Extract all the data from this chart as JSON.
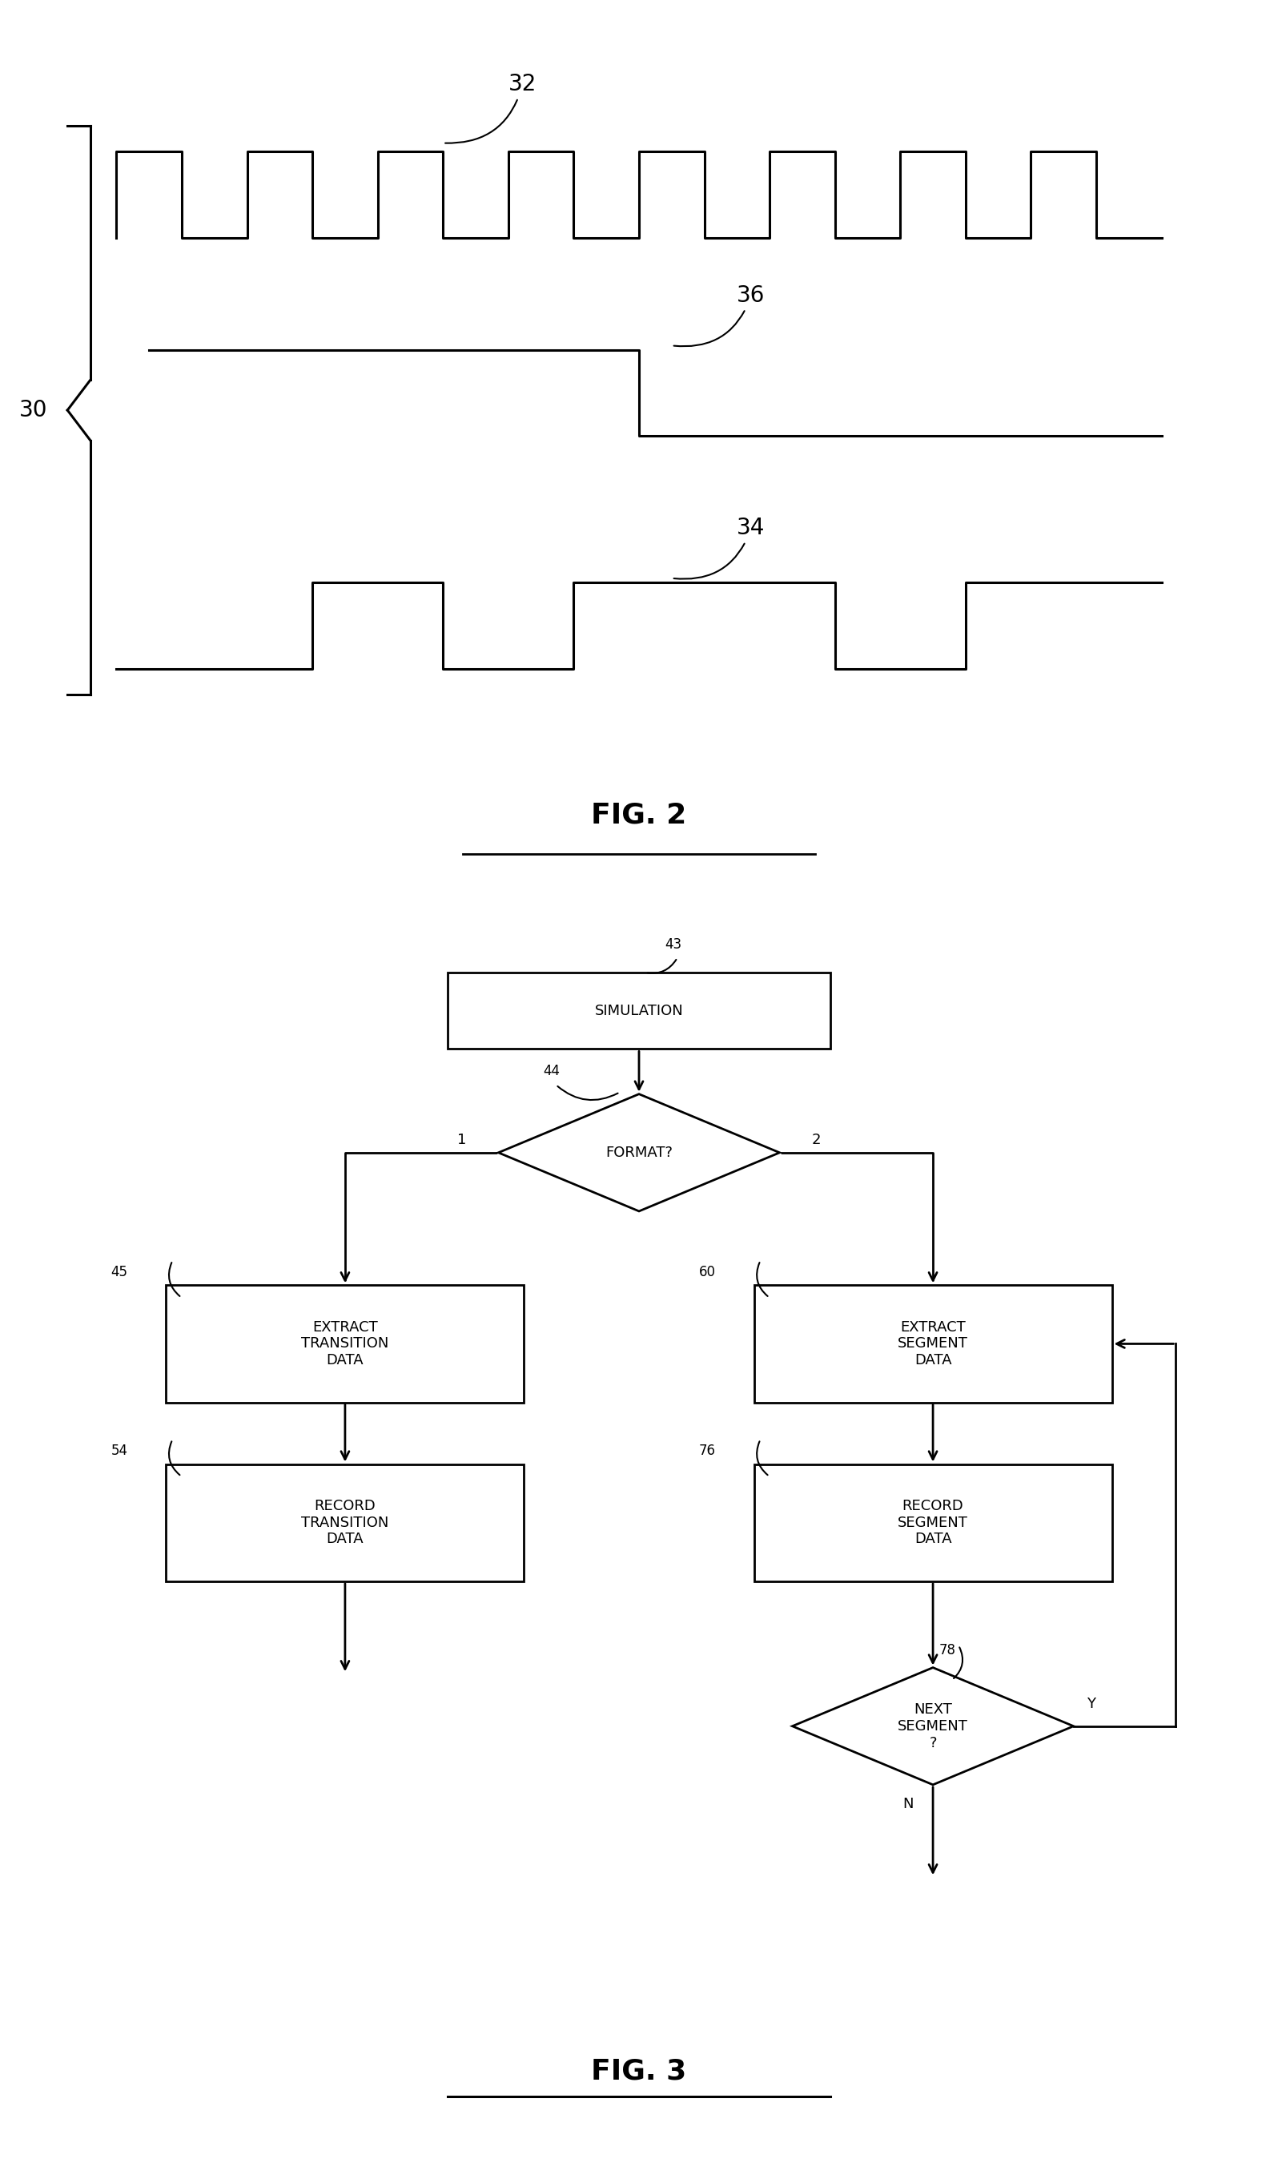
{
  "fig2": {
    "title": "FIG. 2",
    "label_30": "30",
    "label_32": "32",
    "label_34": "34",
    "label_36": "36",
    "clock_signal": {
      "x": [
        1,
        1,
        2,
        2,
        3,
        3,
        4,
        4,
        5,
        5,
        6,
        6,
        7,
        7,
        8,
        8,
        9,
        9,
        10,
        10,
        11,
        11,
        12,
        12,
        13,
        13,
        14,
        14,
        15,
        15,
        16,
        16,
        17
      ],
      "y": [
        0,
        1,
        1,
        0,
        0,
        1,
        1,
        0,
        0,
        1,
        1,
        0,
        0,
        1,
        1,
        0,
        0,
        1,
        1,
        0,
        0,
        1,
        1,
        0,
        0,
        1,
        1,
        0,
        0,
        1,
        1,
        0,
        0
      ]
    },
    "signal36": {
      "x": [
        1.5,
        9,
        9,
        17
      ],
      "y": [
        1,
        1,
        0,
        0
      ]
    },
    "signal34": {
      "x": [
        1,
        1,
        4,
        4,
        6,
        6,
        8,
        8,
        12,
        12,
        14,
        14,
        17
      ],
      "y": [
        0,
        0,
        0,
        1,
        1,
        0,
        0,
        1,
        1,
        0,
        0,
        1,
        1
      ]
    }
  },
  "fig3": {
    "title": "FIG. 3"
  },
  "bg_color": "#ffffff",
  "line_color": "#000000"
}
